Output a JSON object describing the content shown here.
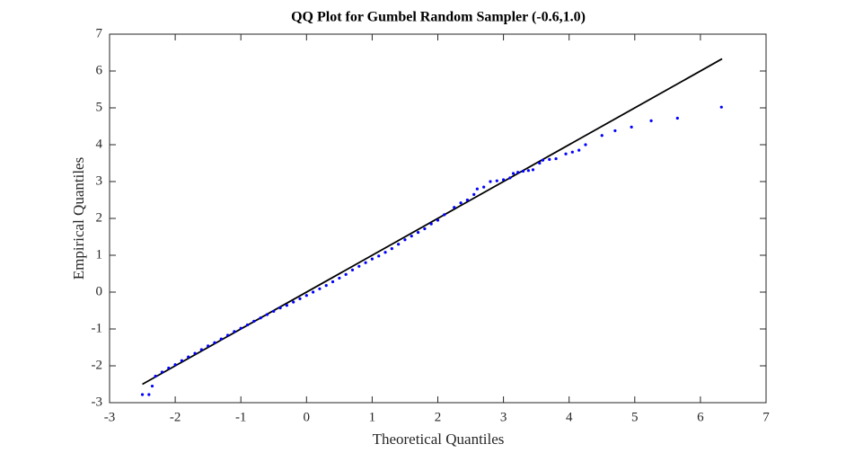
{
  "chart_data": {
    "type": "scatter",
    "title": "QQ Plot for Gumbel Random Sampler (-0.6,1.0)",
    "x_label": "Theoretical Quantiles",
    "y_label": "Empirical Quantiles",
    "xlim": [
      -3,
      7
    ],
    "ylim": [
      -3,
      7
    ],
    "xticks": [
      -3,
      -2,
      -1,
      0,
      1,
      2,
      3,
      4,
      5,
      6,
      7
    ],
    "yticks": [
      -3,
      -2,
      -1,
      0,
      1,
      2,
      3,
      4,
      5,
      6,
      7
    ],
    "grid": false,
    "series": [
      {
        "color": "#0000ff",
        "x": [
          -2.5,
          -2.4,
          -2.35,
          -2.3,
          -2.2,
          -2.1,
          -2.0,
          -1.9,
          -1.8,
          -1.7,
          -1.6,
          -1.5,
          -1.4,
          -1.3,
          -1.2,
          -1.1,
          -1.0,
          -0.9,
          -0.8,
          -0.7,
          -0.6,
          -0.5,
          -0.4,
          -0.3,
          -0.2,
          -0.1,
          0,
          0.1,
          0.2,
          0.3,
          0.4,
          0.5,
          0.6,
          0.7,
          0.8,
          0.9,
          1.0,
          1.1,
          1.2,
          1.3,
          1.4,
          1.5,
          1.6,
          1.7,
          1.8,
          1.9,
          2.0,
          2.1,
          2.25,
          2.35,
          2.45,
          2.55,
          2.6,
          2.7,
          2.8,
          2.9,
          3.0,
          3.1,
          3.15,
          3.22,
          3.3,
          3.38,
          3.45,
          3.55,
          3.6,
          3.7,
          3.8,
          3.95,
          4.05,
          4.15,
          4.25,
          4.5,
          4.7,
          4.95,
          5.25,
          5.65,
          6.32
        ],
        "values": [
          -2.78,
          -2.78,
          -2.55,
          -2.28,
          -2.17,
          -2.06,
          -1.97,
          -1.86,
          -1.76,
          -1.66,
          -1.56,
          -1.46,
          -1.37,
          -1.27,
          -1.17,
          -1.07,
          -0.98,
          -0.89,
          -0.79,
          -0.7,
          -0.61,
          -0.52,
          -0.43,
          -0.36,
          -0.27,
          -0.18,
          -0.09,
          0.0,
          0.09,
          0.18,
          0.28,
          0.38,
          0.48,
          0.6,
          0.7,
          0.8,
          0.9,
          0.98,
          1.08,
          1.18,
          1.3,
          1.42,
          1.52,
          1.62,
          1.72,
          1.85,
          1.95,
          2.1,
          2.3,
          2.42,
          2.5,
          2.65,
          2.8,
          2.85,
          3.0,
          3.02,
          3.05,
          3.1,
          3.22,
          3.25,
          3.28,
          3.3,
          3.32,
          3.5,
          3.58,
          3.6,
          3.62,
          3.75,
          3.8,
          3.85,
          4.0,
          4.25,
          4.38,
          4.48,
          4.65,
          4.72,
          5.02
        ]
      }
    ],
    "reference_line": {
      "color": "#000000",
      "x": [
        -2.5,
        6.33
      ],
      "values": [
        -2.5,
        6.33
      ]
    }
  }
}
